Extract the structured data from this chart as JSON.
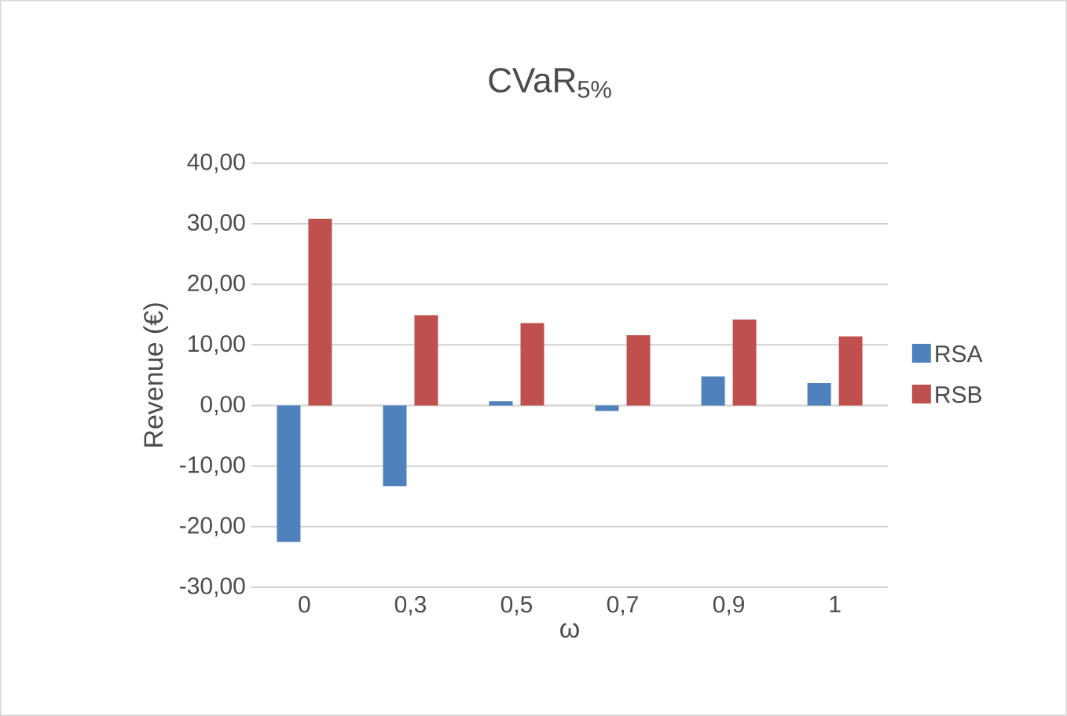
{
  "chart_data": {
    "type": "bar",
    "title": "CVaR$_{5%}$",
    "xlabel": "ω",
    "ylabel": "Revenue (€)",
    "categories": [
      "0",
      "0,3",
      "0,5",
      "0,7",
      "0,9",
      "1"
    ],
    "series": [
      {
        "name": "RSA",
        "color": "#4f81bd",
        "values": [
          -22.5,
          -13.3,
          0.7,
          -0.9,
          4.8,
          3.7
        ]
      },
      {
        "name": "RSB",
        "color": "#c0504d",
        "values": [
          30.8,
          14.9,
          13.6,
          11.6,
          14.2,
          11.4
        ]
      }
    ],
    "ylim": [
      -30,
      40
    ],
    "yticks": [
      {
        "value": -30,
        "label": "-30,00"
      },
      {
        "value": -20,
        "label": "-20,00"
      },
      {
        "value": -10,
        "label": "-10,00"
      },
      {
        "value": 0,
        "label": "0,00"
      },
      {
        "value": 10,
        "label": "10,00"
      },
      {
        "value": 20,
        "label": "20,00"
      },
      {
        "value": 30,
        "label": "30,00"
      },
      {
        "value": 40,
        "label": "40,00"
      }
    ],
    "grid": "y",
    "legend": "right"
  }
}
